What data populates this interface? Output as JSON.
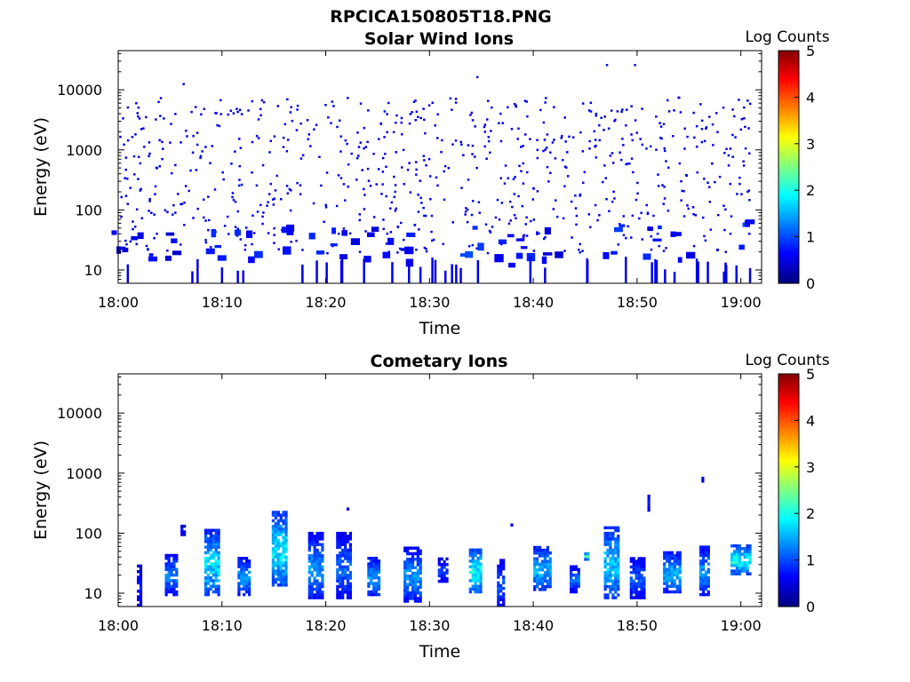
{
  "figure": {
    "title": "RPCICA150805T18.PNG"
  },
  "chart_data": [
    {
      "type": "heatmap",
      "title": "Solar Wind Ions",
      "xlabel": "Time",
      "ylabel": "Energy (eV)",
      "yscale": "log",
      "ylim": [
        6,
        45000
      ],
      "xlim": [
        "18:00",
        "19:02"
      ],
      "xticks": [
        "18:00",
        "18:10",
        "18:20",
        "18:30",
        "18:40",
        "18:50",
        "19:00"
      ],
      "yticks": [
        10,
        100,
        1000,
        10000
      ],
      "ytick_labels": [
        "10",
        "100",
        "1000",
        "10000"
      ],
      "colorbar": {
        "label": "Log Counts",
        "min": 0,
        "max": 5,
        "ticks": [
          "0",
          "1",
          "2",
          "3",
          "4",
          "5"
        ],
        "colormap": "jet"
      },
      "grid": false,
      "description_cells": [
        {
          "t_min": 0.5,
          "energy_ev": 28,
          "log_counts": 0.6
        },
        {
          "t_min": 2.0,
          "energy_ev": 22,
          "log_counts": 0.7
        },
        {
          "t_min": 5.0,
          "energy_ev": 25,
          "log_counts": 0.6
        },
        {
          "t_min": 9.0,
          "energy_ev": 28,
          "log_counts": 0.8
        },
        {
          "t_min": 12.0,
          "energy_ev": 26,
          "log_counts": 0.7
        },
        {
          "t_min": 15.5,
          "energy_ev": 32,
          "log_counts": 0.8
        },
        {
          "t_min": 19.5,
          "energy_ev": 28,
          "log_counts": 0.7
        },
        {
          "t_min": 22.5,
          "energy_ev": 25,
          "log_counts": 0.6
        },
        {
          "t_min": 25.0,
          "energy_ev": 28,
          "log_counts": 0.6
        },
        {
          "t_min": 28.0,
          "energy_ev": 22,
          "log_counts": 0.7
        },
        {
          "t_min": 34.0,
          "energy_ev": 28,
          "log_counts": 0.9
        },
        {
          "t_min": 37.0,
          "energy_ev": 20,
          "log_counts": 0.8
        },
        {
          "t_min": 38.5,
          "energy_ev": 30,
          "log_counts": 0.7
        },
        {
          "t_min": 42.0,
          "energy_ev": 26,
          "log_counts": 0.6
        },
        {
          "t_min": 47.5,
          "energy_ev": 30,
          "log_counts": 0.8
        },
        {
          "t_min": 51.0,
          "energy_ev": 28,
          "log_counts": 0.7
        },
        {
          "t_min": 54.0,
          "energy_ev": 24,
          "log_counts": 0.6
        },
        {
          "t_min": 59.5,
          "energy_ev": 38,
          "log_counts": 0.9
        }
      ]
    },
    {
      "type": "heatmap",
      "title": "Cometary Ions",
      "xlabel": "Time",
      "ylabel": "Energy (eV)",
      "yscale": "log",
      "ylim": [
        6,
        45000
      ],
      "xlim": [
        "18:00",
        "19:02"
      ],
      "xticks": [
        "18:00",
        "18:10",
        "18:20",
        "18:30",
        "18:40",
        "18:50",
        "19:00"
      ],
      "yticks": [
        10,
        100,
        1000,
        10000
      ],
      "ytick_labels": [
        "10",
        "100",
        "1000",
        "10000"
      ],
      "colorbar": {
        "label": "Log Counts",
        "min": 0,
        "max": 5,
        "ticks": [
          "0",
          "1",
          "2",
          "3",
          "4",
          "5"
        ],
        "colormap": "jet"
      },
      "grid": false,
      "bursts": [
        {
          "t_start": 1.8,
          "t_end": 2.3,
          "e_low": 6,
          "e_high": 27,
          "peak_log_counts": 0.8
        },
        {
          "t_start": 4.5,
          "t_end": 5.8,
          "e_low": 9,
          "e_high": 45,
          "peak_log_counts": 1.3
        },
        {
          "t_start": 6.0,
          "t_end": 6.5,
          "e_low": 90,
          "e_high": 125,
          "peak_log_counts": 0.8
        },
        {
          "t_start": 8.3,
          "t_end": 9.8,
          "e_low": 9,
          "e_high": 110,
          "peak_log_counts": 1.8
        },
        {
          "t_start": 11.5,
          "t_end": 12.8,
          "e_low": 9,
          "e_high": 40,
          "peak_log_counts": 1.4
        },
        {
          "t_start": 14.8,
          "t_end": 16.3,
          "e_low": 13,
          "e_high": 230,
          "peak_log_counts": 1.9
        },
        {
          "t_start": 18.3,
          "t_end": 19.8,
          "e_low": 8,
          "e_high": 95,
          "peak_log_counts": 1.4
        },
        {
          "t_start": 21.0,
          "t_end": 22.6,
          "e_low": 8,
          "e_high": 100,
          "peak_log_counts": 1.2
        },
        {
          "t_start": 22.0,
          "t_end": 22.3,
          "e_low": 240,
          "e_high": 300,
          "peak_log_counts": 0.9
        },
        {
          "t_start": 24.0,
          "t_end": 25.2,
          "e_low": 9,
          "e_high": 38,
          "peak_log_counts": 1.5
        },
        {
          "t_start": 27.5,
          "t_end": 29.2,
          "e_low": 7,
          "e_high": 55,
          "peak_log_counts": 1.4
        },
        {
          "t_start": 30.8,
          "t_end": 31.8,
          "e_low": 15,
          "e_high": 38,
          "peak_log_counts": 1.0
        },
        {
          "t_start": 33.8,
          "t_end": 35.0,
          "e_low": 10,
          "e_high": 55,
          "peak_log_counts": 2.0
        },
        {
          "t_start": 36.5,
          "t_end": 37.3,
          "e_low": 6,
          "e_high": 35,
          "peak_log_counts": 1.1
        },
        {
          "t_start": 37.8,
          "t_end": 38.1,
          "e_low": 130,
          "e_high": 150,
          "peak_log_counts": 0.8
        },
        {
          "t_start": 40.0,
          "t_end": 41.8,
          "e_low": 11,
          "e_high": 60,
          "peak_log_counts": 1.6
        },
        {
          "t_start": 43.5,
          "t_end": 44.5,
          "e_low": 10,
          "e_high": 28,
          "peak_log_counts": 1.2
        },
        {
          "t_start": 44.9,
          "t_end": 45.3,
          "e_low": 35,
          "e_high": 45,
          "peak_log_counts": 2.2
        },
        {
          "t_start": 46.8,
          "t_end": 48.4,
          "e_low": 8,
          "e_high": 130,
          "peak_log_counts": 1.7
        },
        {
          "t_start": 49.3,
          "t_end": 50.8,
          "e_low": 8,
          "e_high": 40,
          "peak_log_counts": 1.1
        },
        {
          "t_start": 51.0,
          "t_end": 51.3,
          "e_low": 230,
          "e_high": 430,
          "peak_log_counts": 0.8
        },
        {
          "t_start": 52.5,
          "t_end": 54.3,
          "e_low": 10,
          "e_high": 45,
          "peak_log_counts": 1.6
        },
        {
          "t_start": 56.0,
          "t_end": 57.0,
          "e_low": 9,
          "e_high": 60,
          "peak_log_counts": 1.4
        },
        {
          "t_start": 56.2,
          "t_end": 56.5,
          "e_low": 700,
          "e_high": 800,
          "peak_log_counts": 0.8
        },
        {
          "t_start": 59.0,
          "t_end": 61.0,
          "e_low": 20,
          "e_high": 60,
          "peak_log_counts": 2.0
        }
      ]
    }
  ]
}
